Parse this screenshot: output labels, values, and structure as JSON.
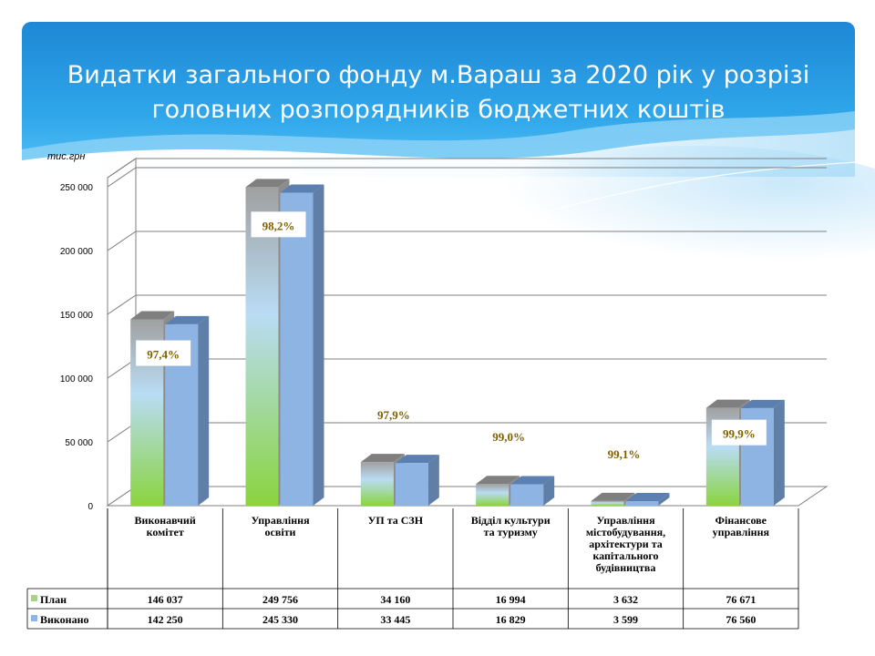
{
  "slide": {
    "title_line1": "Видатки загального фонду м.Вараш за 2020 рік у розрізі",
    "title_line2": "головних розпорядників бюджетних коштів"
  },
  "chart_data": {
    "type": "bar",
    "unit": "тис.грн",
    "categories": [
      [
        "Виконавчий",
        "комітет"
      ],
      [
        "Управління",
        "освіти"
      ],
      [
        "УП та СЗН"
      ],
      [
        "Відділ культури",
        "та туризму"
      ],
      [
        "Управління",
        "містобудування,",
        "архітектури та",
        "капітального",
        "будівництва"
      ],
      [
        "Фінансове",
        "управління"
      ]
    ],
    "series": [
      {
        "name": "План",
        "values": [
          146037,
          249756,
          34160,
          16994,
          3632,
          76671
        ],
        "display": [
          "146 037",
          "249 756",
          "34 160",
          "16 994",
          "3 632",
          "76 671"
        ]
      },
      {
        "name": "Виконано",
        "values": [
          142250,
          245330,
          33445,
          16829,
          3599,
          76560
        ],
        "display": [
          "142 250",
          "245 330",
          "33 445",
          "16 829",
          "3 599",
          "76 560"
        ]
      }
    ],
    "percent_labels": [
      "97,4%",
      "98,2%",
      "97,9%",
      "99,0%",
      "99,1%",
      "99,9%"
    ],
    "ylim": [
      0,
      250000
    ],
    "yticks": [
      0,
      50000,
      100000,
      150000,
      200000,
      250000
    ],
    "ytick_labels": [
      "0",
      "50 000",
      "100 000",
      "150 000",
      "200 000",
      "250 000"
    ],
    "grid": true,
    "colors": {
      "plan": "#a6a6a6",
      "done": "#8eb4e3",
      "label": "#7f6000",
      "grid": "#7f7f7f"
    }
  }
}
